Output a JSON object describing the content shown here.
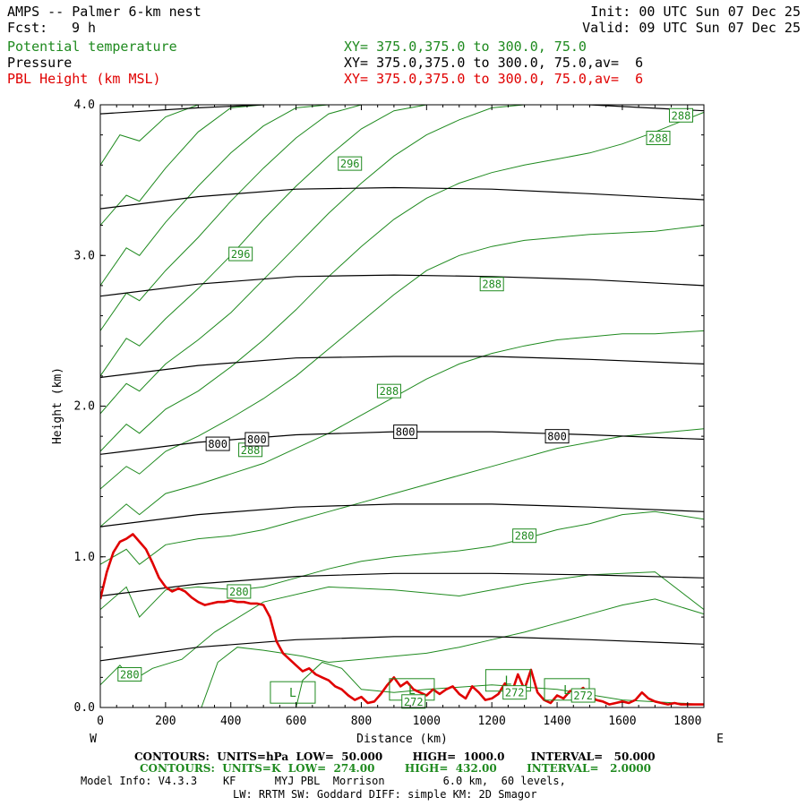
{
  "header": {
    "title": "AMPS -- Palmer 6-km nest",
    "init": "Init: 00 UTC Sun 07 Dec 25",
    "fcst_label": "Fcst:",
    "fcst_value": "9 h",
    "valid": "Valid: 09 UTC Sun 07 Dec 25"
  },
  "fields": [
    {
      "name": "Potential temperature",
      "xy": "XY= 375.0,375.0 to 300.0, 75.0"
    },
    {
      "name": "Pressure",
      "xy": "XY= 375.0,375.0 to 300.0, 75.0,av=  6"
    },
    {
      "name": "PBL Height (km MSL)",
      "xy": "XY= 375.0,375.0 to 300.0, 75.0,av=  6"
    }
  ],
  "colors": {
    "theta": "#1f8a1f",
    "pressure": "#000000",
    "pbl": "#e00000"
  },
  "footer": {
    "pressure_contours": "CONTOURS:  UNITS=hPa  LOW=  50.000        HIGH=  1000.0       INTERVAL=   50.000",
    "theta_contours": "CONTOURS:  UNITS=K  LOW=  274.00        HIGH=  432.00        INTERVAL=   2.0000",
    "model_info": "Model Info: V4.3.3    KF      MYJ PBL  Morrison         6.0 km,  60 levels,",
    "physics": "LW: RRTM SW: Goddard DIFF: simple KM: 2D Smagor"
  },
  "chart_data": {
    "type": "line",
    "title": "AMPS -- Palmer 6-km nest",
    "xlabel": "Distance (km)",
    "ylabel": "Height (km)",
    "xlim": [
      0,
      1850
    ],
    "ylim": [
      0,
      4.0
    ],
    "x_ticks": [
      0,
      200,
      400,
      600,
      800,
      1000,
      1200,
      1400,
      1600,
      1800
    ],
    "y_ticks": [
      0.0,
      1.0,
      2.0,
      3.0,
      4.0
    ],
    "y_tick_labels": [
      "0.0",
      "1.0",
      "2.0",
      "3.0",
      "4.0"
    ],
    "left_end_label": "W",
    "right_end_label": "E",
    "pressure_contour_labels": [
      {
        "text": "800",
        "x": 360,
        "y": 1.75
      },
      {
        "text": "800",
        "x": 480,
        "y": 1.78
      },
      {
        "text": "800",
        "x": 935,
        "y": 1.83
      },
      {
        "text": "800",
        "x": 1400,
        "y": 1.8
      }
    ],
    "theta_contour_labels": [
      {
        "text": "288",
        "x": 1780,
        "y": 3.93
      },
      {
        "text": "288",
        "x": 1710,
        "y": 3.78
      },
      {
        "text": "296",
        "x": 765,
        "y": 3.61
      },
      {
        "text": "296",
        "x": 430,
        "y": 3.01
      },
      {
        "text": "288",
        "x": 1200,
        "y": 2.81
      },
      {
        "text": "288",
        "x": 885,
        "y": 2.1
      },
      {
        "text": "288",
        "x": 460,
        "y": 1.71
      },
      {
        "text": "280",
        "x": 1300,
        "y": 1.14
      },
      {
        "text": "280",
        "x": 425,
        "y": 0.77
      },
      {
        "text": "280",
        "x": 90,
        "y": 0.22
      },
      {
        "text": "272",
        "x": 960,
        "y": 0.04
      },
      {
        "text": "272",
        "x": 1270,
        "y": 0.1
      },
      {
        "text": "272",
        "x": 1480,
        "y": 0.08
      }
    ],
    "low_markers": [
      {
        "text": "L",
        "x": 590,
        "y": 0.1
      },
      {
        "text": "L",
        "x": 955,
        "y": 0.12
      },
      {
        "text": "L",
        "x": 1250,
        "y": 0.18
      },
      {
        "text": "L",
        "x": 1430,
        "y": 0.12
      }
    ],
    "series": [
      {
        "name": "Pressure (hPa)",
        "style": "contour",
        "levels": [
          {
            "hpa": 600,
            "x": [
              0,
              300,
              600,
              900,
              1200,
              1500,
              1850
            ],
            "y": [
              3.94,
              3.98,
              4.01,
              4.02,
              4.02,
              4.0,
              3.96
            ]
          },
          {
            "hpa": 650,
            "x": [
              0,
              300,
              600,
              900,
              1200,
              1500,
              1850
            ],
            "y": [
              3.31,
              3.39,
              3.44,
              3.45,
              3.44,
              3.41,
              3.37
            ]
          },
          {
            "hpa": 700,
            "x": [
              0,
              300,
              600,
              900,
              1200,
              1500,
              1850
            ],
            "y": [
              2.73,
              2.81,
              2.86,
              2.87,
              2.86,
              2.84,
              2.8
            ]
          },
          {
            "hpa": 750,
            "x": [
              0,
              300,
              600,
              900,
              1200,
              1500,
              1850
            ],
            "y": [
              2.19,
              2.27,
              2.32,
              2.33,
              2.33,
              2.31,
              2.28
            ]
          },
          {
            "hpa": 800,
            "x": [
              0,
              300,
              600,
              900,
              1200,
              1500,
              1850
            ],
            "y": [
              1.68,
              1.76,
              1.81,
              1.83,
              1.83,
              1.81,
              1.78
            ]
          },
          {
            "hpa": 850,
            "x": [
              0,
              300,
              600,
              900,
              1200,
              1500,
              1850
            ],
            "y": [
              1.2,
              1.28,
              1.33,
              1.35,
              1.35,
              1.33,
              1.3
            ]
          },
          {
            "hpa": 900,
            "x": [
              0,
              300,
              600,
              900,
              1200,
              1500,
              1850
            ],
            "y": [
              0.74,
              0.82,
              0.87,
              0.89,
              0.89,
              0.88,
              0.86
            ]
          },
          {
            "hpa": 950,
            "x": [
              0,
              300,
              600,
              900,
              1200,
              1500,
              1850
            ],
            "y": [
              0.31,
              0.4,
              0.45,
              0.47,
              0.47,
              0.45,
              0.42
            ]
          }
        ]
      },
      {
        "name": "Potential temperature (K)",
        "style": "contour",
        "levels": [
          {
            "k": 272,
            "x": [
              600,
              620,
              680,
              740,
              800,
              900,
              1000,
              1200,
              1400,
              1600,
              1850
            ],
            "y": [
              0.0,
              0.18,
              0.3,
              0.26,
              0.12,
              0.1,
              0.12,
              0.15,
              0.12,
              0.05,
              0.02
            ]
          },
          {
            "k": 276,
            "x": [
              310,
              360,
              420,
              500,
              560,
              620,
              700,
              800,
              900,
              1000,
              1100,
              1200,
              1300,
              1400,
              1500,
              1600,
              1700,
              1850
            ],
            "y": [
              0.0,
              0.3,
              0.4,
              0.38,
              0.36,
              0.34,
              0.3,
              0.32,
              0.34,
              0.36,
              0.4,
              0.45,
              0.5,
              0.56,
              0.62,
              0.68,
              0.72,
              0.62
            ]
          },
          {
            "k": 278,
            "x": [
              0,
              60,
              100,
              160,
              250,
              350,
              500,
              700,
              900,
              1100,
              1300,
              1500,
              1700,
              1850
            ],
            "y": [
              0.15,
              0.28,
              0.18,
              0.26,
              0.32,
              0.5,
              0.7,
              0.8,
              0.78,
              0.74,
              0.82,
              0.88,
              0.9,
              0.65
            ]
          },
          {
            "k": 280,
            "x": [
              0,
              80,
              120,
              200,
              300,
              420,
              500,
              600,
              700,
              800,
              900,
              1000,
              1100,
              1200,
              1300,
              1400,
              1500,
              1600,
              1700,
              1850
            ],
            "y": [
              0.65,
              0.8,
              0.6,
              0.78,
              0.8,
              0.78,
              0.8,
              0.86,
              0.92,
              0.97,
              1.0,
              1.02,
              1.04,
              1.07,
              1.12,
              1.18,
              1.22,
              1.28,
              1.3,
              1.25
            ]
          },
          {
            "k": 282,
            "x": [
              0,
              80,
              120,
              200,
              300,
              400,
              500,
              600,
              700,
              800,
              900,
              1000,
              1100,
              1200,
              1300,
              1400,
              1500,
              1600,
              1700,
              1850
            ],
            "y": [
              0.95,
              1.05,
              0.95,
              1.08,
              1.12,
              1.14,
              1.18,
              1.24,
              1.3,
              1.36,
              1.42,
              1.48,
              1.54,
              1.6,
              1.66,
              1.72,
              1.76,
              1.8,
              1.82,
              1.85
            ]
          },
          {
            "k": 284,
            "x": [
              0,
              80,
              120,
              200,
              300,
              400,
              500,
              600,
              700,
              800,
              900,
              1000,
              1100,
              1200,
              1300,
              1400,
              1500,
              1600,
              1700,
              1850
            ],
            "y": [
              1.2,
              1.35,
              1.28,
              1.42,
              1.48,
              1.55,
              1.62,
              1.72,
              1.82,
              1.94,
              2.06,
              2.18,
              2.28,
              2.35,
              2.4,
              2.44,
              2.46,
              2.48,
              2.48,
              2.5
            ]
          },
          {
            "k": 286,
            "x": [
              0,
              80,
              120,
              200,
              300,
              400,
              500,
              600,
              700,
              800,
              900,
              1000,
              1100,
              1200,
              1300,
              1400,
              1500,
              1600,
              1700,
              1850
            ],
            "y": [
              1.45,
              1.6,
              1.55,
              1.7,
              1.8,
              1.92,
              2.05,
              2.2,
              2.38,
              2.56,
              2.74,
              2.9,
              3.0,
              3.06,
              3.1,
              3.12,
              3.14,
              3.15,
              3.16,
              3.2
            ]
          },
          {
            "k": 288,
            "x": [
              0,
              80,
              120,
              200,
              300,
              400,
              500,
              600,
              700,
              800,
              900,
              1000,
              1100,
              1200,
              1300,
              1400,
              1500,
              1600,
              1700,
              1850
            ],
            "y": [
              1.7,
              1.88,
              1.82,
              1.98,
              2.1,
              2.26,
              2.44,
              2.64,
              2.86,
              3.06,
              3.24,
              3.38,
              3.48,
              3.55,
              3.6,
              3.64,
              3.68,
              3.74,
              3.82,
              3.95
            ]
          },
          {
            "k": 290,
            "x": [
              0,
              80,
              120,
              200,
              300,
              400,
              500,
              600,
              700,
              800,
              900,
              1000,
              1100,
              1200,
              1300,
              1400,
              1500,
              1600,
              1700
            ],
            "y": [
              1.95,
              2.15,
              2.1,
              2.28,
              2.44,
              2.62,
              2.84,
              3.06,
              3.28,
              3.48,
              3.66,
              3.8,
              3.9,
              3.98,
              4.0,
              4.0,
              4.0,
              4.0,
              4.0
            ]
          },
          {
            "k": 292,
            "x": [
              0,
              80,
              120,
              200,
              300,
              400,
              500,
              600,
              700,
              800,
              900,
              1000,
              1100,
              1200
            ],
            "y": [
              2.2,
              2.45,
              2.4,
              2.58,
              2.78,
              3.0,
              3.24,
              3.46,
              3.66,
              3.84,
              3.96,
              4.0,
              4.0,
              4.0
            ]
          },
          {
            "k": 294,
            "x": [
              0,
              80,
              120,
              200,
              300,
              400,
              500,
              600,
              700,
              800,
              900,
              1000
            ],
            "y": [
              2.5,
              2.75,
              2.7,
              2.9,
              3.12,
              3.36,
              3.58,
              3.78,
              3.94,
              4.0,
              4.0,
              4.0
            ]
          },
          {
            "k": 296,
            "x": [
              0,
              80,
              120,
              200,
              300,
              400,
              500,
              600,
              700,
              800
            ],
            "y": [
              2.8,
              3.05,
              3.0,
              3.22,
              3.46,
              3.68,
              3.86,
              3.98,
              4.0,
              4.0
            ]
          },
          {
            "k": 298,
            "x": [
              0,
              80,
              120,
              200,
              300,
              400,
              500,
              600
            ],
            "y": [
              3.2,
              3.4,
              3.36,
              3.58,
              3.82,
              3.98,
              4.0,
              4.0
            ]
          },
          {
            "k": 300,
            "x": [
              0,
              60,
              120,
              200,
              300,
              400
            ],
            "y": [
              3.6,
              3.8,
              3.76,
              3.92,
              4.0,
              4.0
            ]
          }
        ]
      },
      {
        "name": "PBL Height (km MSL)",
        "style": "line",
        "x": [
          0,
          20,
          40,
          60,
          80,
          100,
          120,
          140,
          160,
          180,
          200,
          220,
          240,
          260,
          280,
          300,
          320,
          340,
          360,
          380,
          400,
          420,
          440,
          460,
          480,
          500,
          520,
          540,
          560,
          580,
          600,
          620,
          640,
          660,
          680,
          700,
          720,
          740,
          760,
          780,
          800,
          820,
          840,
          860,
          880,
          900,
          920,
          940,
          960,
          980,
          1000,
          1020,
          1040,
          1060,
          1080,
          1100,
          1120,
          1140,
          1160,
          1180,
          1200,
          1220,
          1240,
          1260,
          1280,
          1300,
          1320,
          1340,
          1360,
          1380,
          1400,
          1420,
          1440,
          1460,
          1480,
          1500,
          1520,
          1540,
          1560,
          1580,
          1600,
          1620,
          1640,
          1660,
          1680,
          1700,
          1720,
          1740,
          1760,
          1780,
          1800,
          1820,
          1850
        ],
        "y": [
          0.72,
          0.9,
          1.03,
          1.1,
          1.12,
          1.15,
          1.1,
          1.05,
          0.96,
          0.86,
          0.8,
          0.77,
          0.79,
          0.77,
          0.73,
          0.7,
          0.68,
          0.69,
          0.7,
          0.7,
          0.71,
          0.7,
          0.7,
          0.69,
          0.69,
          0.68,
          0.6,
          0.44,
          0.36,
          0.32,
          0.28,
          0.24,
          0.26,
          0.22,
          0.2,
          0.18,
          0.14,
          0.12,
          0.08,
          0.05,
          0.07,
          0.03,
          0.04,
          0.09,
          0.15,
          0.2,
          0.14,
          0.17,
          0.12,
          0.1,
          0.08,
          0.12,
          0.09,
          0.12,
          0.14,
          0.09,
          0.06,
          0.14,
          0.1,
          0.05,
          0.06,
          0.09,
          0.16,
          0.09,
          0.22,
          0.12,
          0.25,
          0.1,
          0.05,
          0.03,
          0.08,
          0.06,
          0.11,
          0.1,
          0.13,
          0.08,
          0.05,
          0.04,
          0.02,
          0.03,
          0.04,
          0.03,
          0.05,
          0.1,
          0.06,
          0.04,
          0.03,
          0.02,
          0.03,
          0.02,
          0.02,
          0.02,
          0.02
        ]
      }
    ]
  }
}
